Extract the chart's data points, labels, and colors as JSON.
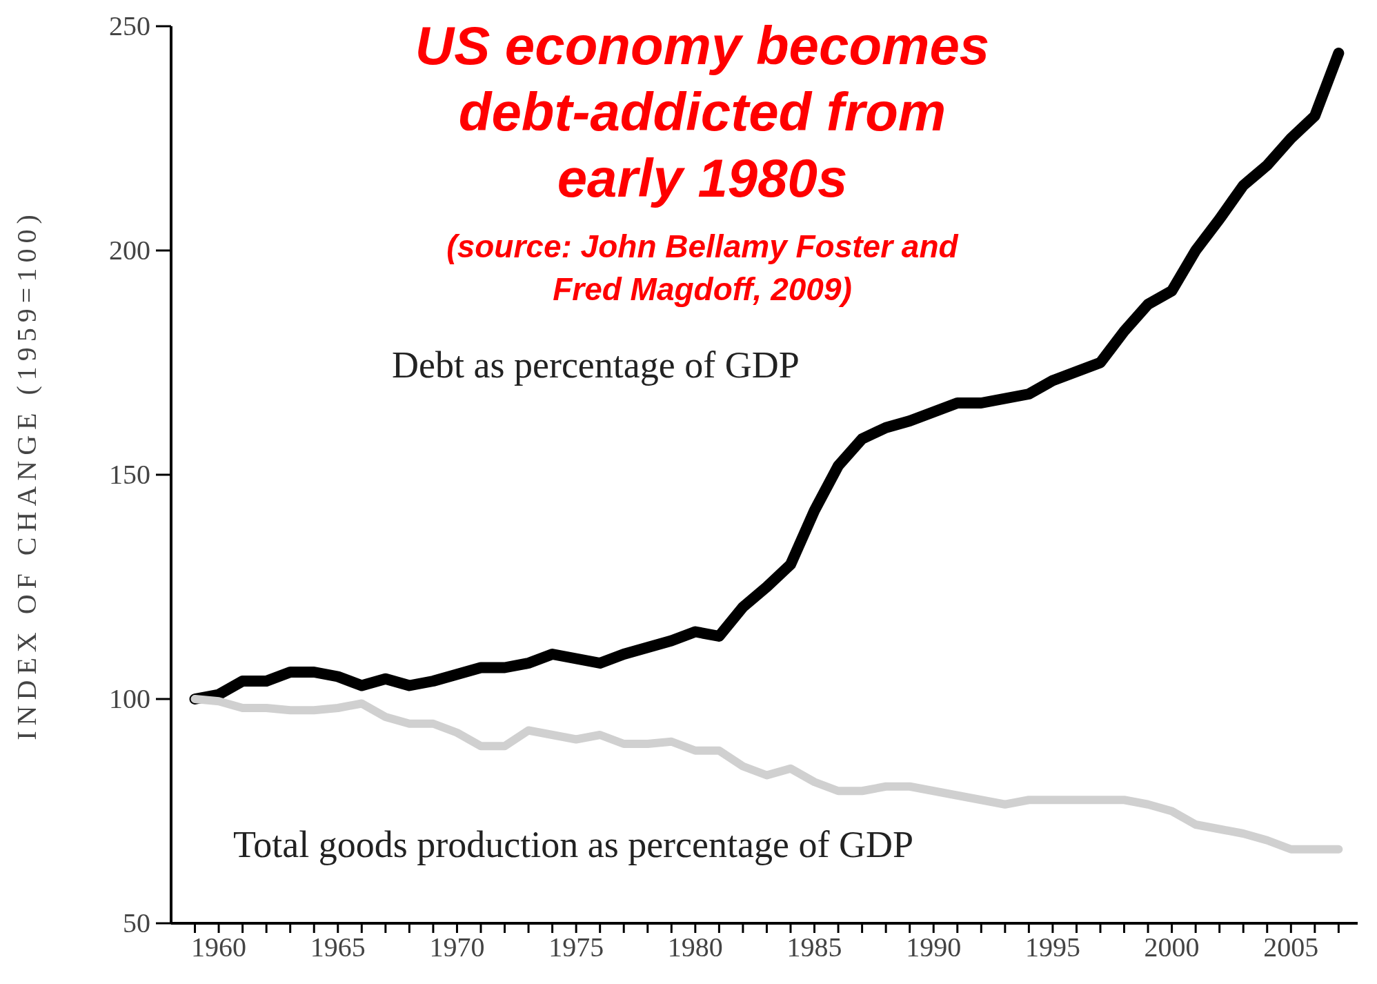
{
  "chart_data": {
    "type": "line",
    "title": "US economy becomes debt-addicted from early 1980s",
    "subtitle": "(source: John Bellamy Foster and Fred Magdoff, 2009)",
    "ylabel": "INDEX OF CHANGE (1959=100)",
    "x": [
      1959,
      1960,
      1961,
      1962,
      1963,
      1964,
      1965,
      1966,
      1967,
      1968,
      1969,
      1970,
      1971,
      1972,
      1973,
      1974,
      1975,
      1976,
      1977,
      1978,
      1979,
      1980,
      1981,
      1982,
      1983,
      1984,
      1985,
      1986,
      1987,
      1988,
      1989,
      1990,
      1991,
      1992,
      1993,
      1994,
      1995,
      1996,
      1997,
      1998,
      1999,
      2000,
      2001,
      2002,
      2003,
      2004,
      2005,
      2006,
      2007
    ],
    "series": [
      {
        "name": "Debt as percentage of GDP",
        "color": "#000000",
        "values": [
          100,
          101,
          104,
          104,
          106,
          106,
          105,
          103,
          104.5,
          103,
          104,
          105.5,
          107,
          107,
          108,
          110,
          109,
          108,
          110,
          111.5,
          113,
          115,
          114,
          120.5,
          125,
          130,
          142,
          152,
          158,
          160.5,
          162,
          164,
          166,
          166,
          167,
          168,
          171,
          173,
          175,
          182,
          188,
          191,
          200,
          207,
          214.5,
          219,
          225,
          230,
          244
        ]
      },
      {
        "name": "Total goods production as percentage of GDP",
        "color": "#d0d0d0",
        "values": [
          100,
          99.5,
          98,
          98,
          97.5,
          97.5,
          98,
          99,
          96,
          94.5,
          94.5,
          92.5,
          89.5,
          89.5,
          93,
          92,
          91,
          92,
          90,
          90,
          90.5,
          88.5,
          88.5,
          85,
          83,
          84.5,
          81.5,
          79.5,
          79.5,
          80.5,
          80.5,
          79.5,
          78.5,
          77.5,
          76.5,
          77.5,
          77.5,
          77.5,
          77.5,
          77.5,
          76.5,
          75,
          72,
          71,
          70,
          68.5,
          66.5,
          66.5,
          66.5
        ]
      }
    ],
    "xlim": [
      1958,
      2007.8
    ],
    "xticks": [
      {
        "value": 1959,
        "label": null
      },
      1960,
      {
        "value": 1961,
        "label": null
      },
      {
        "value": 1962,
        "label": null
      },
      {
        "value": 1963,
        "label": null
      },
      {
        "value": 1964,
        "label": null
      },
      1965,
      {
        "value": 1966,
        "label": null
      },
      {
        "value": 1967,
        "label": null
      },
      {
        "value": 1968,
        "label": null
      },
      {
        "value": 1969,
        "label": null
      },
      1970,
      {
        "value": 1971,
        "label": null
      },
      {
        "value": 1972,
        "label": null
      },
      {
        "value": 1973,
        "label": null
      },
      {
        "value": 1974,
        "label": null
      },
      1975,
      {
        "value": 1976,
        "label": null
      },
      {
        "value": 1977,
        "label": null
      },
      {
        "value": 1978,
        "label": null
      },
      {
        "value": 1979,
        "label": null
      },
      1980,
      {
        "value": 1981,
        "label": null
      },
      {
        "value": 1982,
        "label": null
      },
      {
        "value": 1983,
        "label": null
      },
      {
        "value": 1984,
        "label": null
      },
      1985,
      {
        "value": 1986,
        "label": null
      },
      {
        "value": 1987,
        "label": null
      },
      {
        "value": 1988,
        "label": null
      },
      {
        "value": 1989,
        "label": null
      },
      1990,
      {
        "value": 1991,
        "label": null
      },
      {
        "value": 1992,
        "label": null
      },
      {
        "value": 1993,
        "label": null
      },
      {
        "value": 1994,
        "label": null
      },
      1995,
      {
        "value": 1996,
        "label": null
      },
      {
        "value": 1997,
        "label": null
      },
      {
        "value": 1998,
        "label": null
      },
      {
        "value": 1999,
        "label": null
      },
      2000,
      {
        "value": 2001,
        "label": null
      },
      {
        "value": 2002,
        "label": null
      },
      {
        "value": 2003,
        "label": null
      },
      {
        "value": 2004,
        "label": null
      },
      2005,
      {
        "value": 2006,
        "label": null
      },
      {
        "value": 2007,
        "label": null
      }
    ],
    "ylim": [
      50,
      250
    ],
    "yticks": [
      50,
      100,
      150,
      200,
      250
    ]
  }
}
